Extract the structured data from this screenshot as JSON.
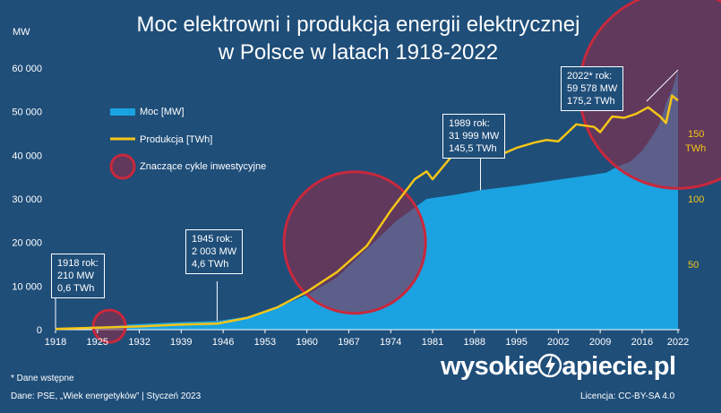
{
  "header": {
    "title_line1": "Moc elektrowni i produkcja energii elektrycznej",
    "title_line2": "w Polsce w latach 1918-2022",
    "unit_left": "MW",
    "unit_right": "TWh"
  },
  "legend": {
    "capacity": "Moc [MW]",
    "production": "Produkcja [TWh]",
    "cycles": "Znaczące cykle inwestycyjne"
  },
  "callouts": [
    {
      "lines": [
        "1918 rok:",
        "210 MW",
        "0,6 TWh"
      ]
    },
    {
      "lines": [
        "1945 rok:",
        "2 003 MW",
        "4,6 TWh"
      ]
    },
    {
      "lines": [
        "1989 rok:",
        "31 999 MW",
        "145,5 TWh"
      ]
    },
    {
      "lines": [
        "2022* rok:",
        "59 578 MW",
        "175,2 TWh"
      ]
    }
  ],
  "footer": {
    "footnote": "* Dane wstępne",
    "source": "Dane: PSE, „Wiek energetyków”  |  Styczeń 2023",
    "license": "Licencja: CC-BY-SA 4.0",
    "logo_left": "wysokie",
    "logo_right": "apiecie.pl"
  },
  "colors": {
    "background": "#1f4e79",
    "capacity_fill": "#1aa3e0",
    "production_line": "#f5c518",
    "cycle_circle": "#c8283c",
    "text": "#ffffff"
  },
  "chart_data": {
    "type": "area",
    "x_ticks": [
      "1918",
      "1925",
      "1932",
      "1939",
      "1946",
      "1953",
      "1960",
      "1967",
      "1974",
      "1981",
      "1988",
      "1995",
      "2002",
      "2009",
      "2016",
      "2022"
    ],
    "left_axis": {
      "label": "MW",
      "range": [
        0,
        60000
      ],
      "ticks": [
        "0",
        "10 000",
        "20 000",
        "30 000",
        "40 000",
        "50 000",
        "60 000"
      ]
    },
    "right_axis": {
      "label": "TWh",
      "range": [
        0,
        200
      ],
      "ticks": [
        "50",
        "100",
        "150"
      ]
    },
    "grid": false,
    "legend_position": "left",
    "series": [
      {
        "name": "Moc [MW]",
        "axis": "left",
        "x": [
          1918,
          1925,
          1930,
          1935,
          1938,
          1945,
          1950,
          1955,
          1960,
          1965,
          1970,
          1975,
          1978,
          1980,
          1985,
          1989,
          1995,
          2000,
          2005,
          2010,
          2012,
          2014,
          2016,
          2018,
          2019,
          2020,
          2021,
          2022
        ],
        "values": [
          210,
          600,
          1200,
          1500,
          1700,
          2003,
          3000,
          5000,
          8000,
          12000,
          18500,
          25000,
          28000,
          30000,
          31000,
          31999,
          33000,
          34000,
          35000,
          36000,
          37500,
          38500,
          41000,
          45000,
          47500,
          52000,
          55000,
          59578
        ]
      },
      {
        "name": "Produkcja [TWh]",
        "axis": "right",
        "x": [
          1918,
          1925,
          1932,
          1939,
          1945,
          1950,
          1955,
          1960,
          1965,
          1970,
          1974,
          1975,
          1978,
          1980,
          1981,
          1985,
          1988,
          1989,
          1990,
          1992,
          1995,
          1998,
          2000,
          2002,
          2005,
          2008,
          2009,
          2011,
          2013,
          2015,
          2017,
          2019,
          2020,
          2021,
          2022
        ],
        "values": [
          0.6,
          1.5,
          2.5,
          4,
          4.6,
          9,
          17,
          29,
          44,
          64,
          91,
          97,
          115,
          121,
          115,
          137,
          145,
          145.5,
          136,
          133,
          139,
          143,
          145,
          144,
          157,
          155,
          151,
          163,
          162,
          165,
          170,
          163,
          158,
          179,
          175.2
        ]
      }
    ],
    "annotations": [
      {
        "year": 1918,
        "text": "1918 rok: 210 MW 0,6 TWh"
      },
      {
        "year": 1945,
        "text": "1945 rok: 2 003 MW 4,6 TWh"
      },
      {
        "year": 1989,
        "text": "1989 rok: 31 999 MW 145,5 TWh"
      },
      {
        "year": 2022,
        "text": "2022* rok: 59 578 MW 175,2 TWh"
      }
    ],
    "highlight_circles": [
      {
        "center_year": 1927,
        "center_value_mw": 800
      },
      {
        "center_year": 1968,
        "center_value_mw": 20000
      },
      {
        "center_year": 2022,
        "center_value_mw": 55000
      }
    ]
  }
}
